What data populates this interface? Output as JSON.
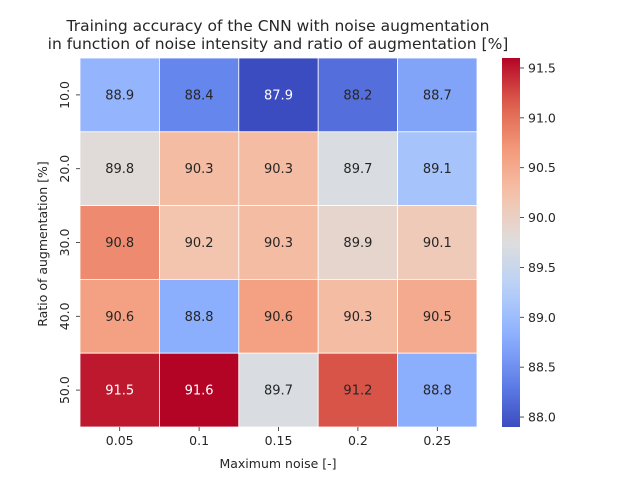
{
  "chart_data": {
    "type": "heatmap",
    "title_lines": [
      "Training accuracy of the CNN with noise augmentation",
      "in function of noise intensity and ratio of augmentation [%]"
    ],
    "xlabel": "Maximum noise [-]",
    "ylabel": "Ratio of augmentation [%]",
    "x_categories": [
      "0.05",
      "0.1",
      "0.15",
      "0.2",
      "0.25"
    ],
    "y_categories": [
      "10.0",
      "20.0",
      "30.0",
      "40.0",
      "50.0"
    ],
    "values": [
      [
        88.9,
        88.4,
        87.9,
        88.2,
        88.7
      ],
      [
        89.8,
        90.3,
        90.3,
        89.7,
        89.1
      ],
      [
        90.8,
        90.2,
        90.3,
        89.9,
        90.1
      ],
      [
        90.6,
        88.8,
        90.6,
        90.3,
        90.5
      ],
      [
        91.5,
        91.6,
        89.7,
        91.2,
        88.8
      ]
    ],
    "colorbar": {
      "colormap": "coolwarm",
      "vmin": 87.9,
      "vmax": 91.6,
      "ticks": [
        "88.0",
        "88.5",
        "89.0",
        "89.5",
        "90.0",
        "90.5",
        "91.0",
        "91.5"
      ]
    },
    "grid": false,
    "cell_borders": "white"
  }
}
